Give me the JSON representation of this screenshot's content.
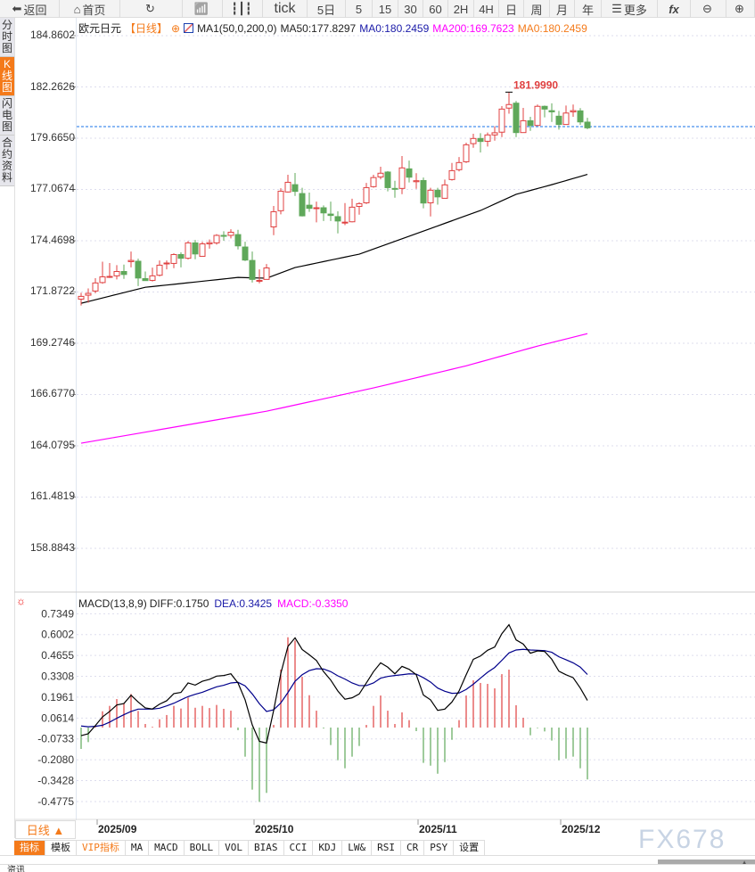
{
  "toolbar": {
    "items": [
      {
        "label": "返回",
        "icon": "back-arrow-icon",
        "w": 67
      },
      {
        "label": "首页",
        "icon": "home-icon",
        "w": 68
      },
      {
        "label": "",
        "icon": "refresh-icon",
        "w": 70
      },
      {
        "label": "",
        "icon": "indicator-chart-icon",
        "w": 45
      },
      {
        "label": "",
        "icon": "candlestick-icon",
        "w": 45
      },
      {
        "label": "tick",
        "w": 50
      },
      {
        "label": "5日",
        "w": 43
      },
      {
        "label": "5",
        "w": 30
      },
      {
        "label": "15",
        "w": 29
      },
      {
        "label": "30",
        "w": 28
      },
      {
        "label": "60",
        "w": 28
      },
      {
        "label": "2H",
        "w": 29
      },
      {
        "label": "4H",
        "w": 28
      },
      {
        "label": "日",
        "w": 28
      },
      {
        "label": "周",
        "w": 29
      },
      {
        "label": "月",
        "w": 28
      },
      {
        "label": "年",
        "w": 30
      },
      {
        "label": "更多",
        "icon": "menu-icon",
        "w": 63
      },
      {
        "label": "fx",
        "w": 37
      },
      {
        "label": "",
        "icon": "zoom-out-icon",
        "w": 40
      },
      {
        "label": "",
        "icon": "zoom-in-icon",
        "w": 32
      }
    ]
  },
  "side_tabs": [
    {
      "label": "分时图"
    },
    {
      "label": "K线图",
      "active": true
    },
    {
      "label": "闪电图"
    },
    {
      "label": "合约资料"
    }
  ],
  "legend": {
    "symbol": "欧元日元",
    "period": "【日线】",
    "ma_name": "MA1(50,0,200,0)",
    "ma50": "MA50:177.8297",
    "ma0a": "MA0:180.2459",
    "ma200": "MA200:169.7623",
    "ma0b": "MA0:180.2459"
  },
  "colors": {
    "up": "#e04040",
    "down": "#5fa85a",
    "ma50": "#000000",
    "ma200": "#ff00ff",
    "dea": "#00008b",
    "diff": "#000000",
    "current": "#1a73e8",
    "accent": "#f47a1a"
  },
  "price_axis": [
    "184.8602",
    "182.2626",
    "179.6650",
    "177.0674",
    "174.4698",
    "171.8722",
    "169.2746",
    "166.6770",
    "164.0795",
    "161.4819",
    "158.8843"
  ],
  "high_label": "181.9990",
  "current_price": 180.25,
  "macd_legend": {
    "name": "MACD(13,8,9)",
    "diff": "DIFF:0.1750",
    "dea": "DEA:0.3425",
    "macd": "MACD:-0.3350"
  },
  "macd_axis": [
    "0.7349",
    "0.6002",
    "0.4655",
    "0.3308",
    "0.1961",
    "0.0614",
    "-0.0733",
    "-0.2080",
    "-0.3428",
    "-0.4775"
  ],
  "x_axis": [
    {
      "label": "2025/09",
      "index": 2
    },
    {
      "label": "2025/10",
      "index": 24
    },
    {
      "label": "2025/11",
      "index": 47
    },
    {
      "label": "2025/12",
      "index": 67
    }
  ],
  "period_button": "日线 ▲",
  "bottom_tabs": [
    {
      "label": "指标",
      "active": true
    },
    {
      "label": "模板"
    },
    {
      "label": "VIP指标",
      "vip": true
    },
    {
      "label": "MA"
    },
    {
      "label": "MACD"
    },
    {
      "label": "BOLL"
    },
    {
      "label": "VOL"
    },
    {
      "label": "BIAS"
    },
    {
      "label": "CCI"
    },
    {
      "label": "KDJ"
    },
    {
      "label": "LW&"
    },
    {
      "label": "RSI"
    },
    {
      "label": "CR"
    },
    {
      "label": "PSY"
    },
    {
      "label": "设置"
    }
  ],
  "watermark": "FX678",
  "news_tab": "资讯",
  "chart_data": [
    {
      "type": "candlestick",
      "ohlc_order": "open,high,low,close",
      "candles": [
        [
          171.51,
          171.83,
          171.19,
          171.65
        ],
        [
          171.71,
          172.05,
          171.33,
          171.8
        ],
        [
          171.92,
          172.57,
          171.81,
          172.33
        ],
        [
          172.35,
          173.41,
          172.29,
          172.64
        ],
        [
          172.63,
          173.34,
          172.58,
          172.66
        ],
        [
          172.69,
          173.23,
          172.51,
          172.91
        ],
        [
          172.91,
          173.26,
          172.54,
          172.76
        ],
        [
          173.41,
          173.92,
          173.12,
          173.47
        ],
        [
          173.43,
          173.56,
          172.17,
          172.58
        ],
        [
          172.55,
          172.91,
          172.45,
          172.45
        ],
        [
          172.46,
          173.11,
          172.4,
          172.69
        ],
        [
          172.72,
          173.47,
          172.66,
          173.23
        ],
        [
          173.3,
          173.47,
          173.02,
          173.34
        ],
        [
          173.32,
          173.83,
          173.08,
          173.77
        ],
        [
          173.77,
          173.88,
          173.12,
          173.58
        ],
        [
          173.58,
          174.45,
          173.52,
          174.36
        ],
        [
          174.36,
          174.51,
          173.53,
          173.8
        ],
        [
          173.68,
          174.42,
          173.68,
          174.31
        ],
        [
          174.31,
          174.53,
          174.07,
          174.37
        ],
        [
          174.36,
          174.8,
          174.27,
          174.74
        ],
        [
          174.74,
          174.95,
          174.47,
          174.72
        ],
        [
          174.74,
          175.05,
          174.59,
          174.9
        ],
        [
          174.78,
          175.02,
          174.03,
          174.21
        ],
        [
          174.15,
          174.42,
          173.44,
          173.49
        ],
        [
          173.47,
          173.92,
          172.35,
          172.51
        ],
        [
          172.43,
          173.02,
          172.31,
          172.46
        ],
        [
          172.51,
          173.29,
          172.51,
          173.09
        ],
        [
          175.17,
          176.23,
          174.75,
          175.94
        ],
        [
          175.99,
          177.13,
          175.81,
          176.98
        ],
        [
          176.94,
          177.81,
          176.91,
          177.43
        ],
        [
          177.31,
          177.9,
          176.74,
          176.97
        ],
        [
          176.86,
          177.15,
          175.7,
          175.73
        ],
        [
          176.27,
          176.91,
          175.93,
          176.11
        ],
        [
          176.11,
          176.45,
          175.4,
          176.14
        ],
        [
          176.14,
          176.26,
          175.47,
          175.88
        ],
        [
          175.82,
          176.45,
          175.47,
          175.75
        ],
        [
          175.69,
          175.96,
          174.84,
          175.47
        ],
        [
          175.39,
          176.38,
          175.26,
          175.41
        ],
        [
          175.43,
          176.6,
          175.4,
          176.17
        ],
        [
          176.21,
          176.42,
          175.79,
          176.35
        ],
        [
          176.39,
          177.4,
          176.33,
          177.16
        ],
        [
          177.21,
          177.81,
          177.16,
          177.67
        ],
        [
          177.7,
          178.22,
          177.58,
          177.89
        ],
        [
          177.95,
          178.0,
          176.97,
          177.16
        ],
        [
          177.12,
          177.51,
          176.65,
          177.09
        ],
        [
          177.12,
          178.76,
          176.83,
          178.16
        ],
        [
          178.11,
          178.53,
          177.42,
          177.69
        ],
        [
          177.46,
          177.89,
          177.1,
          177.51
        ],
        [
          177.52,
          177.67,
          176.11,
          176.38
        ],
        [
          176.39,
          177.15,
          175.7,
          177.03
        ],
        [
          177.03,
          177.15,
          176.3,
          176.69
        ],
        [
          176.62,
          177.57,
          176.62,
          177.3
        ],
        [
          177.57,
          178.41,
          177.52,
          178.02
        ],
        [
          178.07,
          178.71,
          177.98,
          178.43
        ],
        [
          178.47,
          179.44,
          178.41,
          179.33
        ],
        [
          179.39,
          179.89,
          179.18,
          179.65
        ],
        [
          179.65,
          179.92,
          178.94,
          179.5
        ],
        [
          179.51,
          179.95,
          179.24,
          179.83
        ],
        [
          179.83,
          180.27,
          179.54,
          179.94
        ],
        [
          179.97,
          181.29,
          179.72,
          181.14
        ],
        [
          181.19,
          181.999,
          180.91,
          181.37
        ],
        [
          181.44,
          181.55,
          179.72,
          179.95
        ],
        [
          179.95,
          181.2,
          179.95,
          180.55
        ],
        [
          180.55,
          180.75,
          180.04,
          180.31
        ],
        [
          180.31,
          181.37,
          180.31,
          181.28
        ],
        [
          181.28,
          181.32,
          180.72,
          181.14
        ],
        [
          181.06,
          181.43,
          180.49,
          181.0
        ],
        [
          180.78,
          181.05,
          180.1,
          180.36
        ],
        [
          180.36,
          181.32,
          180.36,
          180.94
        ],
        [
          181.0,
          181.37,
          180.75,
          181.06
        ],
        [
          181.05,
          181.19,
          180.34,
          180.49
        ],
        [
          180.48,
          180.7,
          180.12,
          180.19
        ]
      ],
      "ma50": [
        [
          0,
          171.3
        ],
        [
          9,
          172.11
        ],
        [
          14,
          172.3
        ],
        [
          22,
          172.61
        ],
        [
          26,
          172.57
        ],
        [
          30,
          173.11
        ],
        [
          39,
          173.79
        ],
        [
          47,
          174.83
        ],
        [
          56,
          176.0
        ],
        [
          61,
          176.82
        ],
        [
          66,
          177.31
        ],
        [
          71,
          177.83
        ]
      ],
      "ma200": [
        [
          0,
          164.21
        ],
        [
          26,
          165.83
        ],
        [
          41,
          167.01
        ],
        [
          54,
          168.13
        ],
        [
          64,
          169.13
        ],
        [
          71,
          169.76
        ]
      ],
      "ylim": [
        157.5,
        185.6
      ]
    },
    {
      "type": "macd",
      "hist": [
        -0.138,
        -0.094,
        0.01,
        0.105,
        0.14,
        0.184,
        0.157,
        0.217,
        0.107,
        0.023,
        0.005,
        0.054,
        0.081,
        0.14,
        0.123,
        0.194,
        0.128,
        0.14,
        0.126,
        0.146,
        0.121,
        0.109,
        -0.017,
        -0.188,
        -0.401,
        -0.48,
        -0.422,
        0.017,
        0.374,
        0.583,
        0.562,
        0.328,
        0.209,
        0.109,
        -0.006,
        -0.113,
        -0.211,
        -0.263,
        -0.188,
        -0.119,
        0.017,
        0.14,
        0.207,
        0.109,
        0.023,
        0.098,
        0.048,
        -0.023,
        -0.228,
        -0.246,
        -0.298,
        -0.223,
        -0.079,
        0.048,
        0.207,
        0.305,
        0.288,
        0.282,
        0.253,
        0.345,
        0.374,
        0.144,
        0.063,
        -0.05,
        -0.004,
        -0.025,
        -0.084,
        -0.211,
        -0.2,
        -0.188,
        -0.263,
        -0.335
      ],
      "diff": [
        -0.052,
        -0.04,
        0.013,
        0.069,
        0.104,
        0.146,
        0.155,
        0.209,
        0.165,
        0.127,
        0.12,
        0.151,
        0.173,
        0.219,
        0.227,
        0.288,
        0.274,
        0.299,
        0.311,
        0.332,
        0.336,
        0.347,
        0.288,
        0.179,
        0.017,
        -0.089,
        -0.1,
        0.111,
        0.349,
        0.524,
        0.579,
        0.504,
        0.47,
        0.433,
        0.361,
        0.307,
        0.236,
        0.183,
        0.192,
        0.217,
        0.288,
        0.361,
        0.418,
        0.39,
        0.347,
        0.395,
        0.376,
        0.341,
        0.21,
        0.179,
        0.111,
        0.119,
        0.165,
        0.236,
        0.341,
        0.441,
        0.462,
        0.499,
        0.52,
        0.606,
        0.664,
        0.566,
        0.539,
        0.48,
        0.495,
        0.491,
        0.441,
        0.364,
        0.341,
        0.322,
        0.255,
        0.175
      ],
      "dea": [
        0.01,
        0.005,
        0.008,
        0.015,
        0.035,
        0.06,
        0.083,
        0.104,
        0.119,
        0.119,
        0.119,
        0.125,
        0.14,
        0.157,
        0.179,
        0.2,
        0.215,
        0.228,
        0.246,
        0.263,
        0.273,
        0.288,
        0.292,
        0.269,
        0.217,
        0.154,
        0.104,
        0.115,
        0.159,
        0.226,
        0.299,
        0.341,
        0.368,
        0.38,
        0.378,
        0.361,
        0.334,
        0.313,
        0.288,
        0.271,
        0.271,
        0.288,
        0.319,
        0.33,
        0.336,
        0.341,
        0.347,
        0.345,
        0.322,
        0.294,
        0.255,
        0.234,
        0.221,
        0.223,
        0.246,
        0.28,
        0.319,
        0.357,
        0.388,
        0.434,
        0.482,
        0.501,
        0.505,
        0.501,
        0.499,
        0.497,
        0.486,
        0.457,
        0.438,
        0.418,
        0.39,
        0.3425
      ],
      "ylim": [
        -0.55,
        0.8
      ]
    }
  ]
}
